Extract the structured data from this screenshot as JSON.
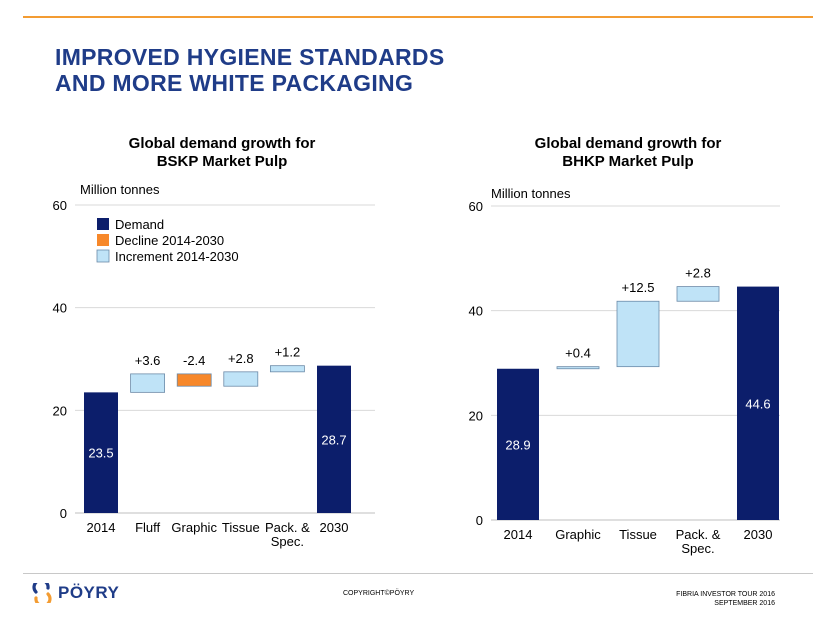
{
  "slide": {
    "title_line1": "IMPROVED HYGIENE STANDARDS",
    "title_line2": "AND MORE WHITE PACKAGING"
  },
  "colors": {
    "accent_orange": "#f39c32",
    "title_blue": "#1f3c88",
    "demand": "#0c1e6b",
    "decline": "#f7882a",
    "increment": "#bfe3f7"
  },
  "legend": [
    {
      "key": "demand",
      "label": "Demand"
    },
    {
      "key": "decline",
      "label": "Decline 2014-2030"
    },
    {
      "key": "increment",
      "label": "Increment 2014-2030"
    }
  ],
  "chart_data": [
    {
      "type": "bar",
      "subtype": "waterfall",
      "title_line1": "Global demand growth for",
      "title_line2": "BSKP Market Pulp",
      "ylabel": "Million tonnes",
      "ylim": [
        0,
        60
      ],
      "yticks": [
        0,
        20,
        40,
        60
      ],
      "grid": true,
      "legend_position": "top-left",
      "bars": [
        {
          "category": "2014",
          "kind": "demand",
          "start": 0,
          "end": 23.5,
          "label": "23.5"
        },
        {
          "category": "Fluff",
          "kind": "increment",
          "start": 23.5,
          "end": 27.1,
          "label": "+3.6"
        },
        {
          "category": "Graphic",
          "kind": "decline",
          "start": 24.7,
          "end": 27.1,
          "label": "-2.4"
        },
        {
          "category": "Tissue",
          "kind": "increment",
          "start": 24.7,
          "end": 27.5,
          "label": "+2.8"
        },
        {
          "category": "Pack. & Spec.",
          "kind": "increment",
          "start": 27.5,
          "end": 28.7,
          "label": "+1.2"
        },
        {
          "category": "2030",
          "kind": "demand",
          "start": 0,
          "end": 28.7,
          "label": "28.7"
        }
      ]
    },
    {
      "type": "bar",
      "subtype": "waterfall",
      "title_line1": "Global demand growth for",
      "title_line2": "BHKP Market Pulp",
      "ylabel": "Million tonnes",
      "ylim": [
        0,
        60
      ],
      "yticks": [
        0,
        20,
        40,
        60
      ],
      "grid": true,
      "bars": [
        {
          "category": "2014",
          "kind": "demand",
          "start": 0,
          "end": 28.9,
          "label": "28.9"
        },
        {
          "category": "Graphic",
          "kind": "increment",
          "start": 28.9,
          "end": 29.3,
          "label": "+0.4"
        },
        {
          "category": "Tissue",
          "kind": "increment",
          "start": 29.3,
          "end": 41.8,
          "label": "+12.5"
        },
        {
          "category": "Pack. & Spec.",
          "kind": "increment",
          "start": 41.8,
          "end": 44.6,
          "label": "+2.8"
        },
        {
          "category": "2030",
          "kind": "demand",
          "start": 0,
          "end": 44.6,
          "label": "44.6"
        }
      ]
    }
  ],
  "footer": {
    "brand": "PÖYRY",
    "logo_icon": "poyry-s-logo-icon",
    "copyright": "COPYRIGHT©PÖYRY",
    "event_line1": "FIBRIA INVESTOR TOUR 2016",
    "event_line2": "SEPTEMBER 2016"
  }
}
